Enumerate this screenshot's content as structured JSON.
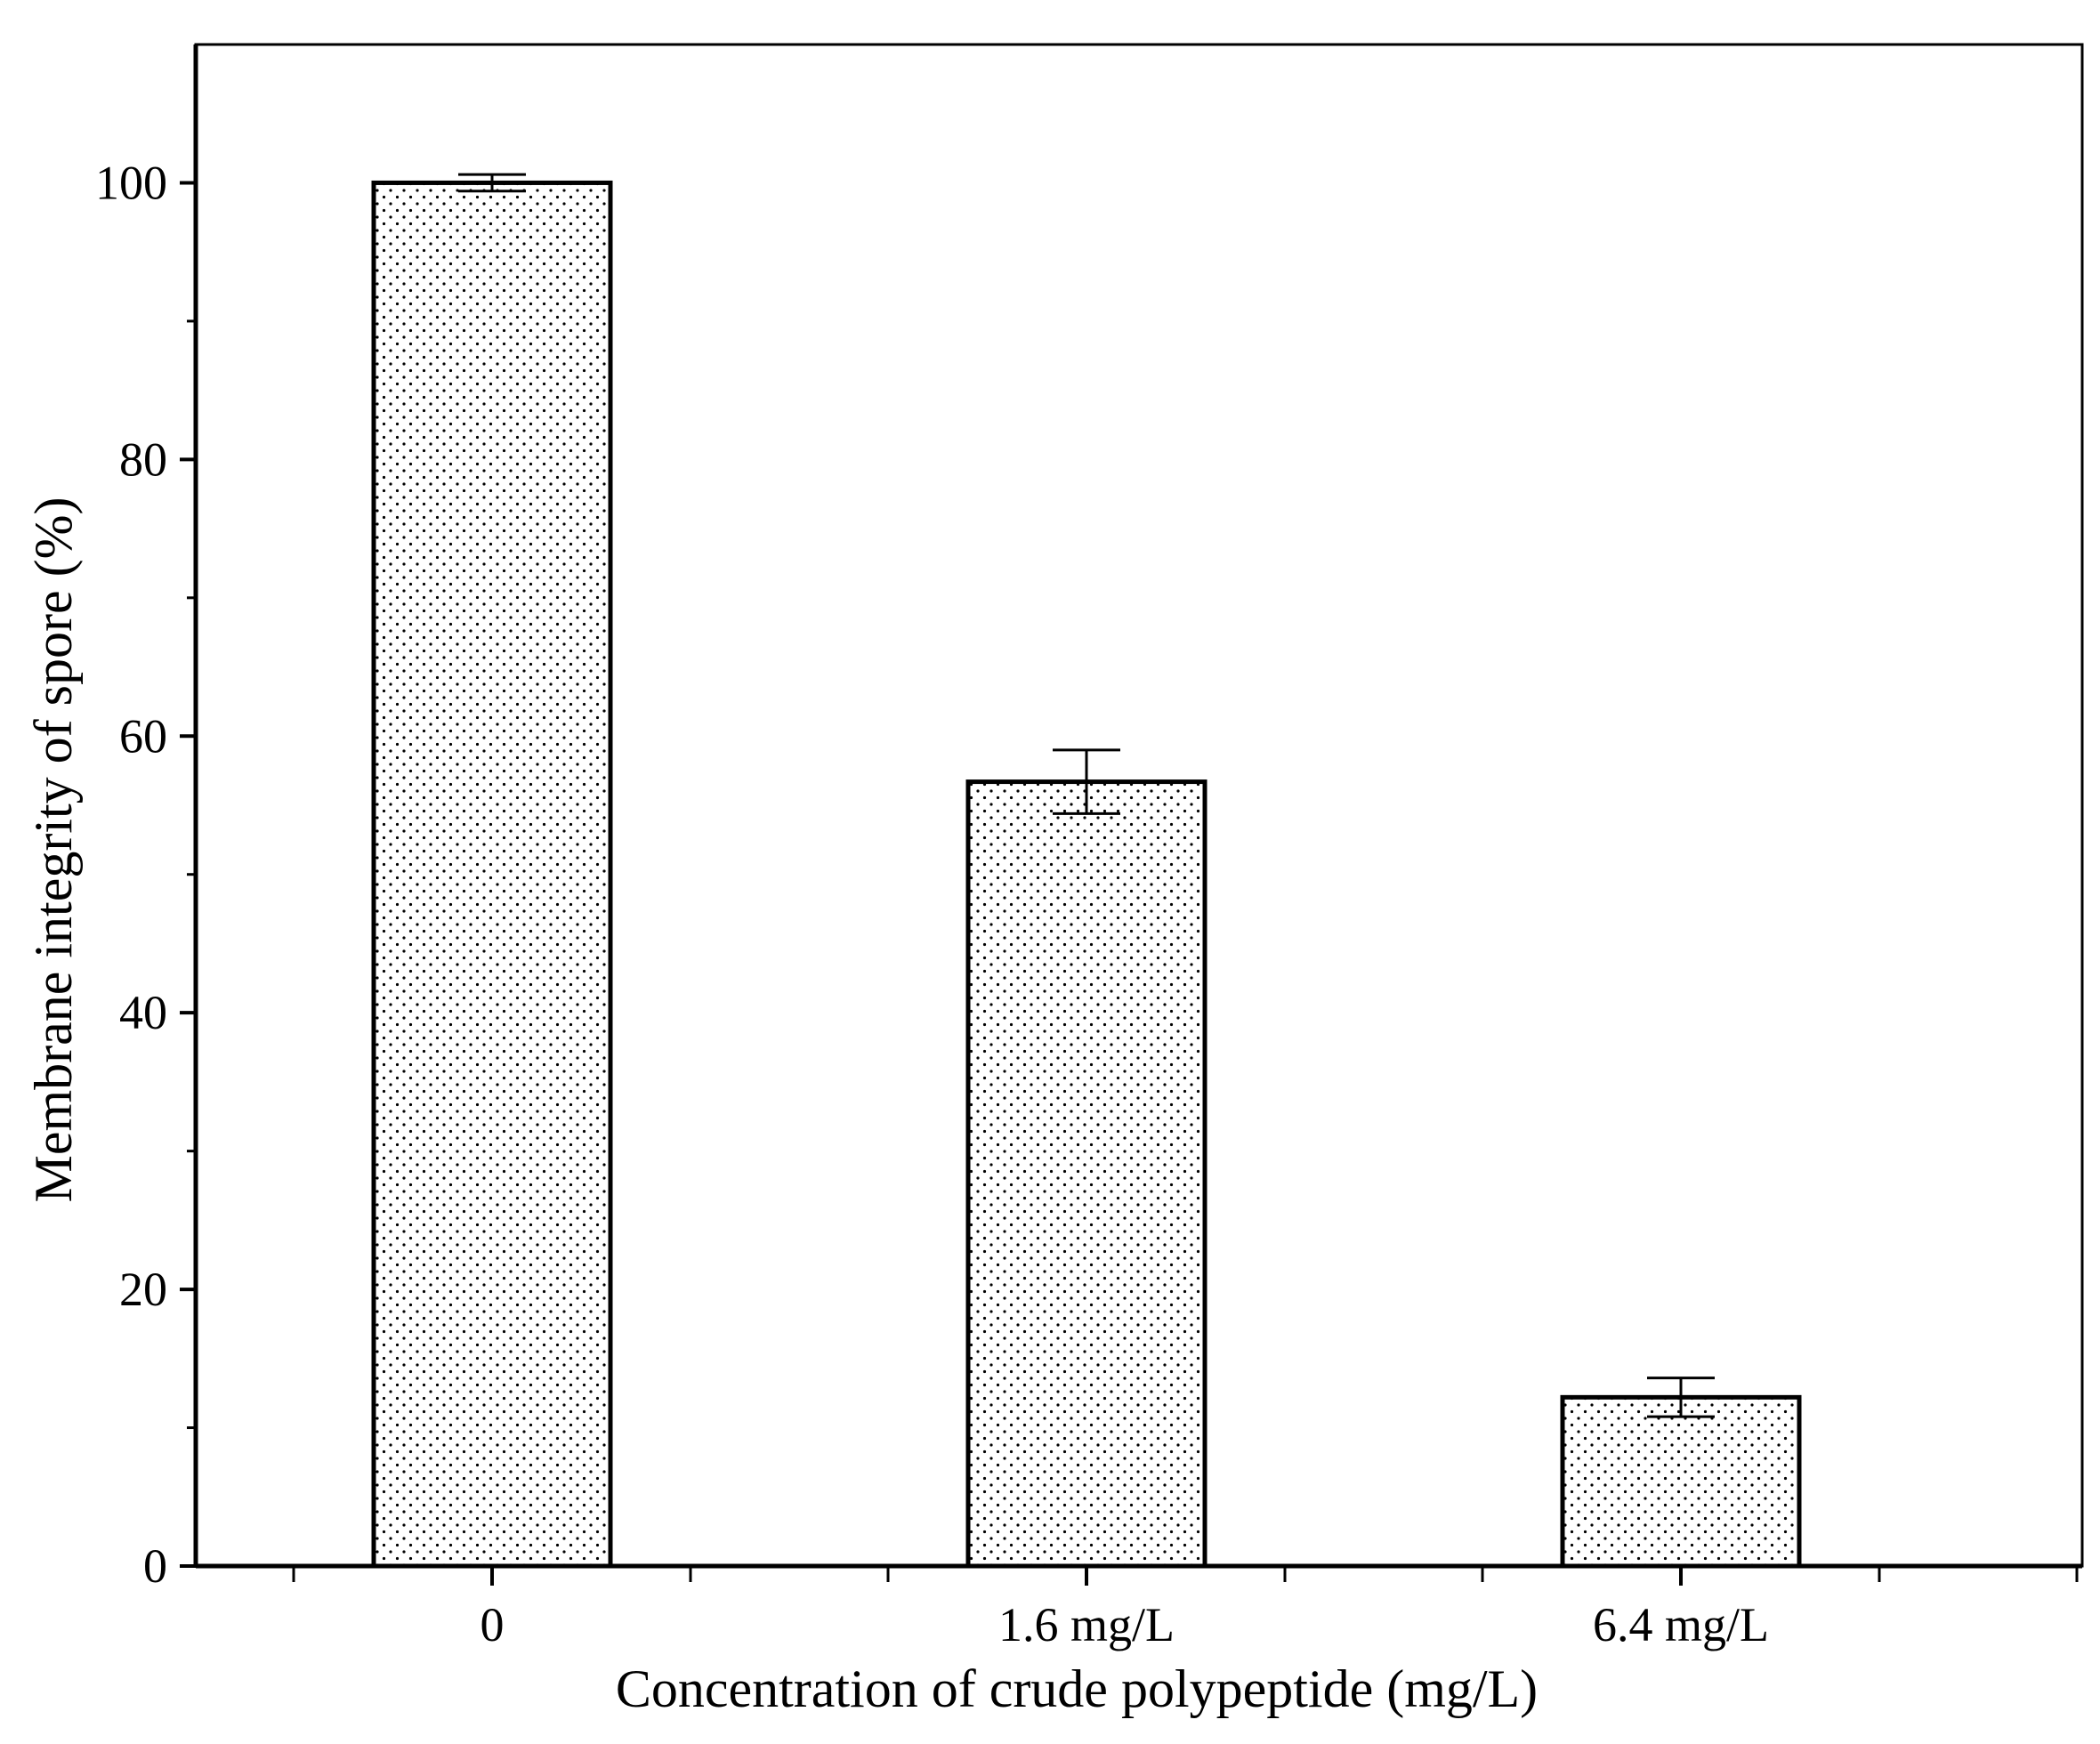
{
  "chart_data": {
    "type": "bar",
    "title": "",
    "xlabel": "Concentration of crude polypeptide (mg/L)",
    "ylabel": "Membrane integrity of spore (%)",
    "categories": [
      "0",
      "1.6 mg/L",
      "6.4 mg/L"
    ],
    "values": [
      100,
      56.7,
      12.2
    ],
    "errors": [
      0.6,
      2.3,
      1.4
    ],
    "ylim": [
      0,
      110
    ],
    "yticks": [
      0,
      20,
      40,
      60,
      80,
      100
    ],
    "ytick_labels": [
      "0",
      "20",
      "40",
      "60",
      "80",
      "100"
    ],
    "grid": false,
    "legend": "none",
    "bar_pattern": "dotted",
    "colors": {
      "bar_fill": "#ffffff",
      "bar_edge": "#000000",
      "pattern_dot": "#000000"
    }
  }
}
